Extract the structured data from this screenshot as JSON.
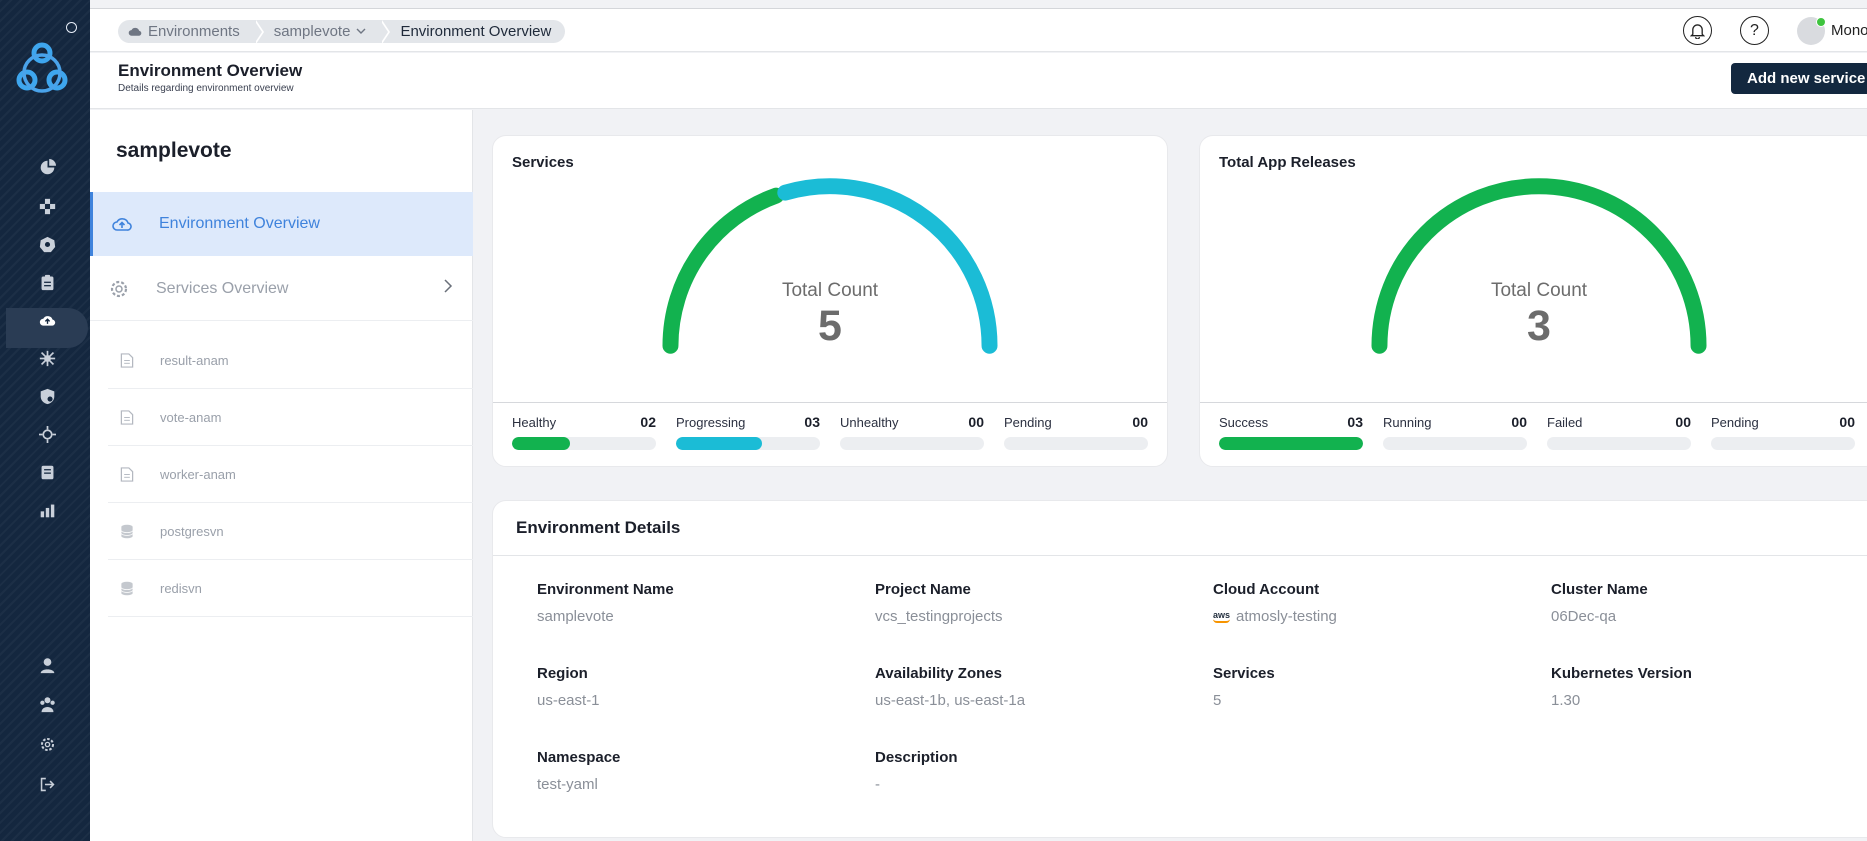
{
  "breadcrumb": [
    {
      "label": "Environments",
      "icon": "cloud-icon"
    },
    {
      "label": "samplevote",
      "icon": "chevron-down-icon"
    },
    {
      "label": "Environment Overview"
    }
  ],
  "topbar": {
    "user_name": "Mono",
    "help_symbol": "?"
  },
  "page": {
    "title": "Environment Overview",
    "subtitle": "Details regarding environment overview",
    "add_button": "Add new service"
  },
  "sidebar": {
    "env_name": "samplevote",
    "nav": [
      {
        "label": "Environment Overview",
        "icon": "cloud-upload-icon",
        "active": true
      },
      {
        "label": "Services Overview",
        "icon": "settings-gear-icon",
        "active": false
      }
    ],
    "services": [
      {
        "label": "result-anam",
        "icon": "file-icon"
      },
      {
        "label": "vote-anam",
        "icon": "file-icon"
      },
      {
        "label": "worker-anam",
        "icon": "file-icon"
      },
      {
        "label": "postgresvn",
        "icon": "database-icon"
      },
      {
        "label": "redisvn",
        "icon": "database-icon"
      }
    ]
  },
  "services_card": {
    "title": "Services",
    "gauge_label": "Total Count",
    "total": "5",
    "segments": [
      {
        "fraction": 0.4,
        "color": "#12b24f"
      },
      {
        "fraction": 0.6,
        "color": "#1bbcd6"
      }
    ],
    "stats": [
      {
        "label": "Healthy",
        "value": "02",
        "fill": 0.4,
        "color": "#12b24f"
      },
      {
        "label": "Progressing",
        "value": "03",
        "fill": 0.6,
        "color": "#1bbcd6"
      },
      {
        "label": "Unhealthy",
        "value": "00",
        "fill": 0,
        "color": "#e5484d"
      },
      {
        "label": "Pending",
        "value": "00",
        "fill": 0,
        "color": "#f5a623"
      }
    ]
  },
  "releases_card": {
    "title": "Total App Releases",
    "gauge_label": "Total Count",
    "total": "3",
    "segments": [
      {
        "fraction": 1.0,
        "color": "#12b24f"
      }
    ],
    "stats": [
      {
        "label": "Success",
        "value": "03",
        "fill": 1.0,
        "color": "#12b24f"
      },
      {
        "label": "Running",
        "value": "00",
        "fill": 0,
        "color": "#1bbcd6"
      },
      {
        "label": "Failed",
        "value": "00",
        "fill": 0,
        "color": "#e5484d"
      },
      {
        "label": "Pending",
        "value": "00",
        "fill": 0,
        "color": "#f5a623"
      }
    ]
  },
  "details": {
    "title": "Environment Details",
    "fields": [
      {
        "label": "Environment Name",
        "value": "samplevote"
      },
      {
        "label": "Project Name",
        "value": "vcs_testingprojects"
      },
      {
        "label": "Cloud Account",
        "value": "atmosly-testing",
        "badge": "aws"
      },
      {
        "label": "Cluster Name",
        "value": "06Dec-qa"
      },
      {
        "label": "Region",
        "value": "us-east-1"
      },
      {
        "label": "Availability Zones",
        "value": "us-east-1b, us-east-1a"
      },
      {
        "label": "Services",
        "value": "5"
      },
      {
        "label": "Kubernetes Version",
        "value": "1.30"
      },
      {
        "label": "Namespace",
        "value": "test-yaml"
      },
      {
        "label": "Description",
        "value": "-"
      }
    ]
  },
  "rail": {
    "icons": [
      "dashboard-pie-icon",
      "pipelines-icon",
      "kubernetes-icon",
      "clipboard-icon",
      "environments-cloud-icon",
      "cluster-network-icon",
      "security-shield-icon",
      "helm-icon",
      "docs-icon",
      "analytics-icon",
      "user-icon",
      "team-icon",
      "settings-icon",
      "logout-icon"
    ]
  }
}
